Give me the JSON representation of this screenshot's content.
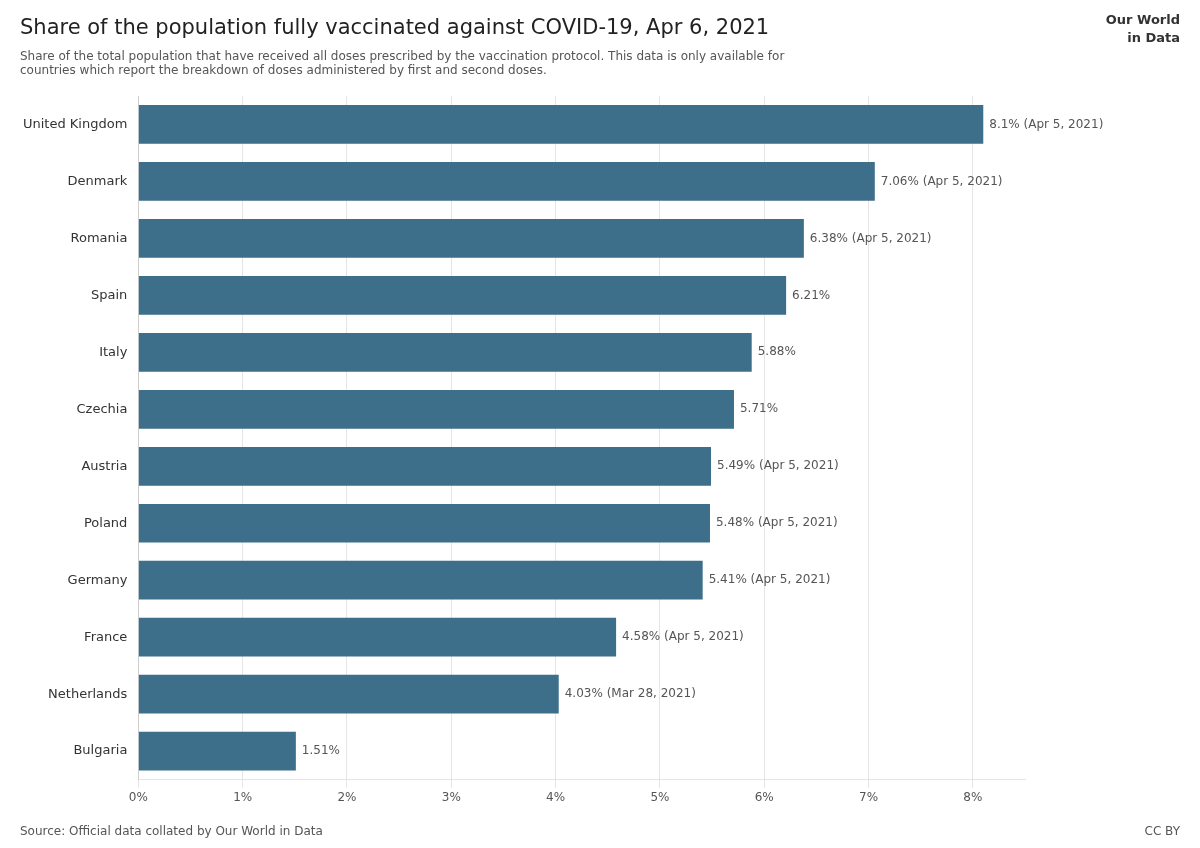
{
  "chart_data": {
    "type": "bar",
    "orientation": "horizontal",
    "title": "Share of the population fully vaccinated against COVID-19, Apr 6, 2021",
    "subtitle": "Share of the total population that have received all doses prescribed by the vaccination protocol. This data is only available for\ncountries which report the breakdown of doses administered by first and second doses.",
    "categories": [
      "United Kingdom",
      "Denmark",
      "Romania",
      "Spain",
      "Italy",
      "Czechia",
      "Austria",
      "Poland",
      "Germany",
      "France",
      "Netherlands",
      "Bulgaria"
    ],
    "values": [
      8.1,
      7.06,
      6.38,
      6.21,
      5.88,
      5.71,
      5.49,
      5.48,
      5.41,
      4.58,
      4.03,
      1.51
    ],
    "value_labels": [
      "8.1% (Apr 5, 2021)",
      "7.06% (Apr 5, 2021)",
      "6.38% (Apr 5, 2021)",
      "6.21%",
      "5.88%",
      "5.71%",
      "5.49% (Apr 5, 2021)",
      "5.48% (Apr 5, 2021)",
      "5.41% (Apr 5, 2021)",
      "4.58% (Apr 5, 2021)",
      "4.03% (Mar 28, 2021)",
      "1.51%"
    ],
    "data_labels": true,
    "color": "#3d6e8a",
    "xlim": [
      0,
      8.5
    ],
    "xticks": [
      {
        "value": 0,
        "label": "0%"
      },
      {
        "value": 1,
        "label": "1%"
      },
      {
        "value": 2,
        "label": "2%"
      },
      {
        "value": 3,
        "label": "3%"
      },
      {
        "value": 4,
        "label": "4%"
      },
      {
        "value": 5,
        "label": "5%"
      },
      {
        "value": 6,
        "label": "6%"
      },
      {
        "value": 7,
        "label": "7%"
      },
      {
        "value": 8,
        "label": "8%"
      }
    ],
    "grid": true,
    "annotations": [
      "Source: Official data collated by Our World in Data",
      "CC BY",
      "Our World",
      "in Data"
    ]
  }
}
